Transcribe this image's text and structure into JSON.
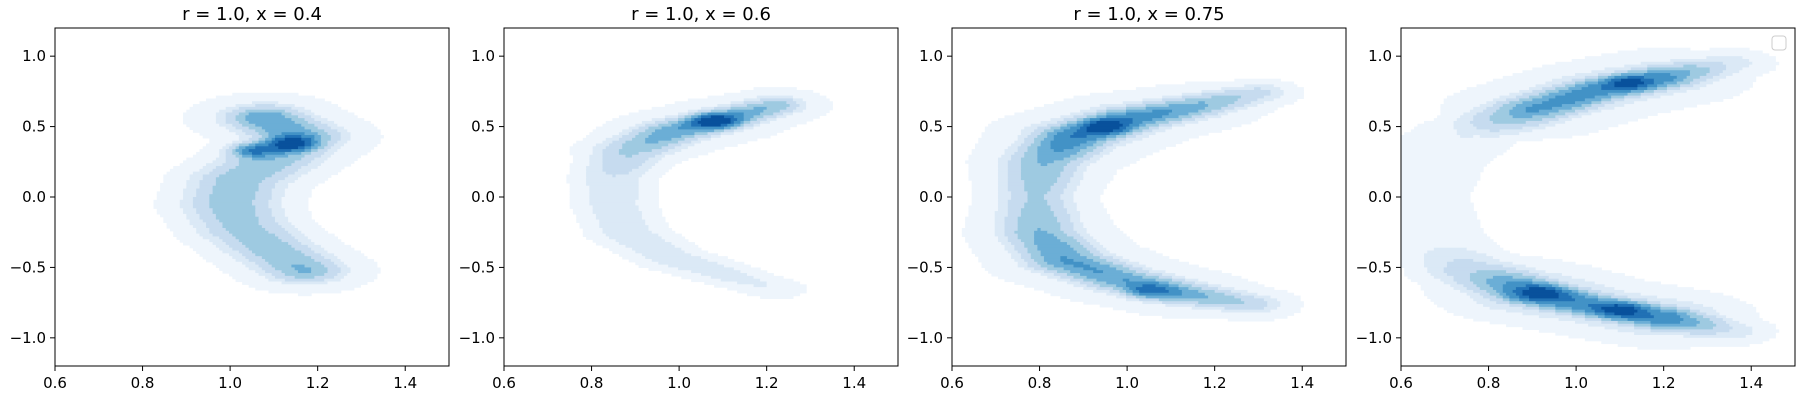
{
  "figure": {
    "background": "#ffffff"
  },
  "chart_data": [
    {
      "type": "contour",
      "title": "r = 1.0, x = 0.4",
      "xlabel": "",
      "ylabel": "",
      "xlim": [
        0.6,
        1.5
      ],
      "ylim": [
        -1.2,
        1.2
      ],
      "xticks": [
        0.6,
        0.8,
        1.0,
        1.2,
        1.4
      ],
      "xtick_labels": [
        "0.6",
        "0.8",
        "1.0",
        "1.2",
        "1.4"
      ],
      "yticks": [
        1.0,
        0.5,
        0.0,
        -0.5,
        -1.0
      ],
      "ytick_labels": [
        "1.0",
        "0.5",
        "0.0",
        "−0.5",
        "−1.0"
      ],
      "colormap": "Blues",
      "levels": 8,
      "density_path": [
        [
          1.08,
          0.56
        ],
        [
          1.16,
          0.43
        ],
        [
          1.1,
          0.27
        ],
        [
          1.02,
          0.12
        ],
        [
          1.0,
          -0.05
        ],
        [
          1.03,
          -0.22
        ],
        [
          1.1,
          -0.38
        ],
        [
          1.17,
          -0.52
        ]
      ],
      "path_widths": [
        0.07,
        0.075,
        0.08,
        0.08,
        0.08,
        0.08,
        0.075,
        0.07
      ],
      "path_weights": [
        0.6,
        0.55,
        0.45,
        0.45,
        0.45,
        0.42,
        0.45,
        0.5
      ],
      "spread": 0.055,
      "hotspots": [
        {
          "x": 1.14,
          "y": 0.38,
          "weight": 0.65
        },
        {
          "x": 1.05,
          "y": 0.33,
          "weight": 0.45
        }
      ],
      "legend": null
    },
    {
      "type": "contour",
      "title": "r = 1.0, x = 0.6",
      "xlabel": "",
      "ylabel": "",
      "xlim": [
        0.6,
        1.5
      ],
      "ylim": [
        -1.2,
        1.2
      ],
      "xticks": [
        0.6,
        0.8,
        1.0,
        1.2,
        1.4
      ],
      "xtick_labels": [
        "0.6",
        "0.8",
        "1.0",
        "1.2",
        "1.4"
      ],
      "yticks": [
        1.0,
        0.5,
        0.0,
        -0.5,
        -1.0
      ],
      "ytick_labels": [
        "1.0",
        "0.5",
        "0.0",
        "−0.5",
        "−1.0"
      ],
      "colormap": "Blues",
      "levels": 8,
      "density_path": [
        [
          1.22,
          0.65
        ],
        [
          1.1,
          0.55
        ],
        [
          0.98,
          0.46
        ],
        [
          0.89,
          0.33
        ],
        [
          0.85,
          0.15
        ],
        [
          0.85,
          -0.05
        ],
        [
          0.88,
          -0.25
        ],
        [
          0.98,
          -0.43
        ],
        [
          1.12,
          -0.56
        ],
        [
          1.22,
          -0.65
        ]
      ],
      "path_widths": [
        0.05,
        0.055,
        0.06,
        0.065,
        0.065,
        0.065,
        0.065,
        0.06,
        0.055,
        0.05
      ],
      "path_weights": [
        0.45,
        0.62,
        0.58,
        0.4,
        0.25,
        0.22,
        0.22,
        0.22,
        0.2,
        0.15
      ],
      "spread": 0.05,
      "hotspots": [
        {
          "x": 1.08,
          "y": 0.54,
          "weight": 0.55
        }
      ],
      "legend": null
    },
    {
      "type": "contour",
      "title": "r = 1.0, x = 0.75",
      "xlabel": "",
      "ylabel": "",
      "xlim": [
        0.6,
        1.5
      ],
      "ylim": [
        -1.2,
        1.2
      ],
      "xticks": [
        0.6,
        0.8,
        1.0,
        1.2,
        1.4
      ],
      "xtick_labels": [
        "0.6",
        "0.8",
        "1.0",
        "1.2",
        "1.4"
      ],
      "yticks": [
        1.0,
        0.5,
        0.0,
        -0.5,
        -1.0
      ],
      "ytick_labels": [
        "1.0",
        "0.5",
        "0.0",
        "−0.5",
        "−1.0"
      ],
      "colormap": "Blues",
      "levels": 8,
      "density_path": [
        [
          1.3,
          0.74
        ],
        [
          1.15,
          0.64
        ],
        [
          1.0,
          0.55
        ],
        [
          0.88,
          0.43
        ],
        [
          0.81,
          0.25
        ],
        [
          0.79,
          0.0
        ],
        [
          0.8,
          -0.25
        ],
        [
          0.86,
          -0.45
        ],
        [
          0.98,
          -0.58
        ],
        [
          1.12,
          -0.68
        ],
        [
          1.28,
          -0.76
        ]
      ],
      "path_widths": [
        0.055,
        0.06,
        0.065,
        0.07,
        0.07,
        0.065,
        0.07,
        0.07,
        0.065,
        0.06,
        0.055
      ],
      "path_weights": [
        0.3,
        0.55,
        0.72,
        0.75,
        0.5,
        0.38,
        0.5,
        0.62,
        0.6,
        0.58,
        0.35
      ],
      "spread": 0.06,
      "hotspots": [
        {
          "x": 0.95,
          "y": 0.5,
          "weight": 0.45
        },
        {
          "x": 1.05,
          "y": -0.67,
          "weight": 0.35
        }
      ],
      "legend": null
    },
    {
      "type": "contour",
      "title": "",
      "xlabel": "",
      "ylabel": "",
      "xlim": [
        0.6,
        1.5
      ],
      "ylim": [
        -1.2,
        1.2
      ],
      "xticks": [
        0.6,
        0.8,
        1.0,
        1.2,
        1.4
      ],
      "xtick_labels": [
        "0.6",
        "0.8",
        "1.0",
        "1.2",
        "1.4"
      ],
      "yticks": [
        1.0,
        0.5,
        0.0,
        -0.5,
        -1.0
      ],
      "ytick_labels": [
        "1.0",
        "0.5",
        "0.0",
        "−0.5",
        "−1.0"
      ],
      "colormap": "Blues",
      "levels": 8,
      "density_path": [
        [
          1.35,
          0.95
        ],
        [
          1.2,
          0.85
        ],
        [
          1.05,
          0.76
        ],
        [
          0.9,
          0.62
        ],
        [
          0.75,
          0.45
        ],
        [
          0.66,
          0.25
        ],
        [
          0.62,
          0.0
        ],
        [
          0.66,
          -0.3
        ],
        [
          0.76,
          -0.52
        ],
        [
          0.9,
          -0.68
        ],
        [
          1.05,
          -0.78
        ],
        [
          1.2,
          -0.86
        ],
        [
          1.35,
          -0.95
        ]
      ],
      "path_widths": [
        0.06,
        0.065,
        0.065,
        0.07,
        0.08,
        0.09,
        0.09,
        0.09,
        0.08,
        0.07,
        0.065,
        0.065,
        0.06
      ],
      "path_weights": [
        0.2,
        0.58,
        0.62,
        0.55,
        0.15,
        0.06,
        0.05,
        0.08,
        0.3,
        0.7,
        0.62,
        0.65,
        0.22
      ],
      "spread": 0.07,
      "hotspots": [
        {
          "x": 1.12,
          "y": 0.81,
          "weight": 0.35
        },
        {
          "x": 0.92,
          "y": -0.68,
          "weight": 0.35
        },
        {
          "x": 1.1,
          "y": -0.8,
          "weight": 0.35
        }
      ],
      "legend": {
        "location": "upper right",
        "entries": []
      }
    }
  ]
}
